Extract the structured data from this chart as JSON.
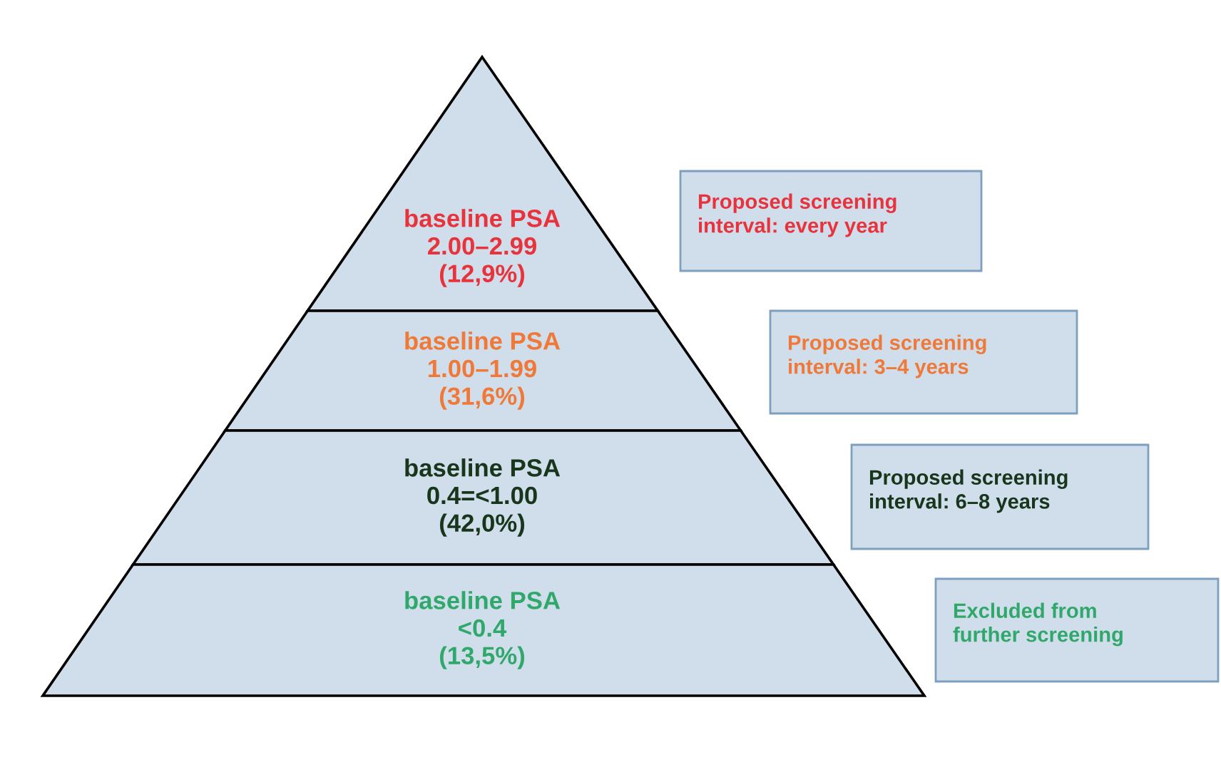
{
  "chart_data": {
    "type": "other",
    "categories": [
      "baseline PSA\n2.00–2.99",
      "baseline PSA\n1.00–1.99",
      "baseline PSA\n0.4=<1.00",
      "baseline PSA\n<0.4"
    ],
    "values": [
      12.9,
      31.6,
      42.0,
      13.5
    ],
    "value_labels": [
      "(12,9%)",
      "(31,6%)",
      "(42,0%)",
      "(13,5%)"
    ],
    "colors": [
      "#cfdeea",
      "#cfdeea",
      "#cfdeea",
      "#cfdeea"
    ],
    "annotations": [
      "Proposed screening\ninterval: every year",
      "Proposed screening\ninterval: 3–4 years",
      "Proposed screening\ninterval: 6–8 years",
      "Excluded from\nfurther screening"
    ]
  }
}
